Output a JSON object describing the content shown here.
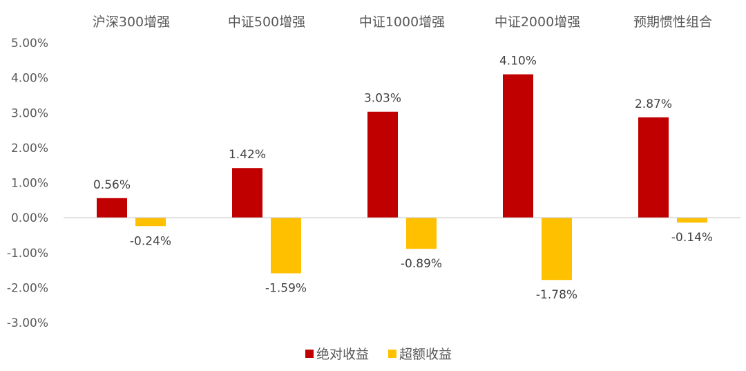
{
  "chart_data": {
    "type": "bar",
    "categories": [
      "沪深300增强",
      "中证500增强",
      "中证1000增强",
      "中证2000增强",
      "预期惯性组合"
    ],
    "series": [
      {
        "name": "绝对收益",
        "values": [
          0.56,
          1.42,
          3.03,
          4.1,
          2.87
        ],
        "labels": [
          "0.56%",
          "1.42%",
          "3.03%",
          "4.10%",
          "2.87%"
        ],
        "color": "#C00000"
      },
      {
        "name": "超额收益",
        "values": [
          -0.24,
          -1.59,
          -0.89,
          -1.78,
          -0.14
        ],
        "labels": [
          "-0.24%",
          "-1.59%",
          "-0.89%",
          "-1.78%",
          "-0.14%"
        ],
        "color": "#FFC000"
      }
    ],
    "y_ticks": [
      5,
      4,
      3,
      2,
      1,
      0,
      -1,
      -2,
      -3
    ],
    "y_tick_labels": [
      "5.00%",
      "4.00%",
      "3.00%",
      "2.00%",
      "1.00%",
      "0.00%",
      "-1.00%",
      "-2.00%",
      "-3.00%"
    ],
    "ylim": [
      -3,
      5
    ],
    "categories_position": "top",
    "grid": false,
    "legend_position": "bottom",
    "zero_line_color": "#BFBFBF"
  }
}
